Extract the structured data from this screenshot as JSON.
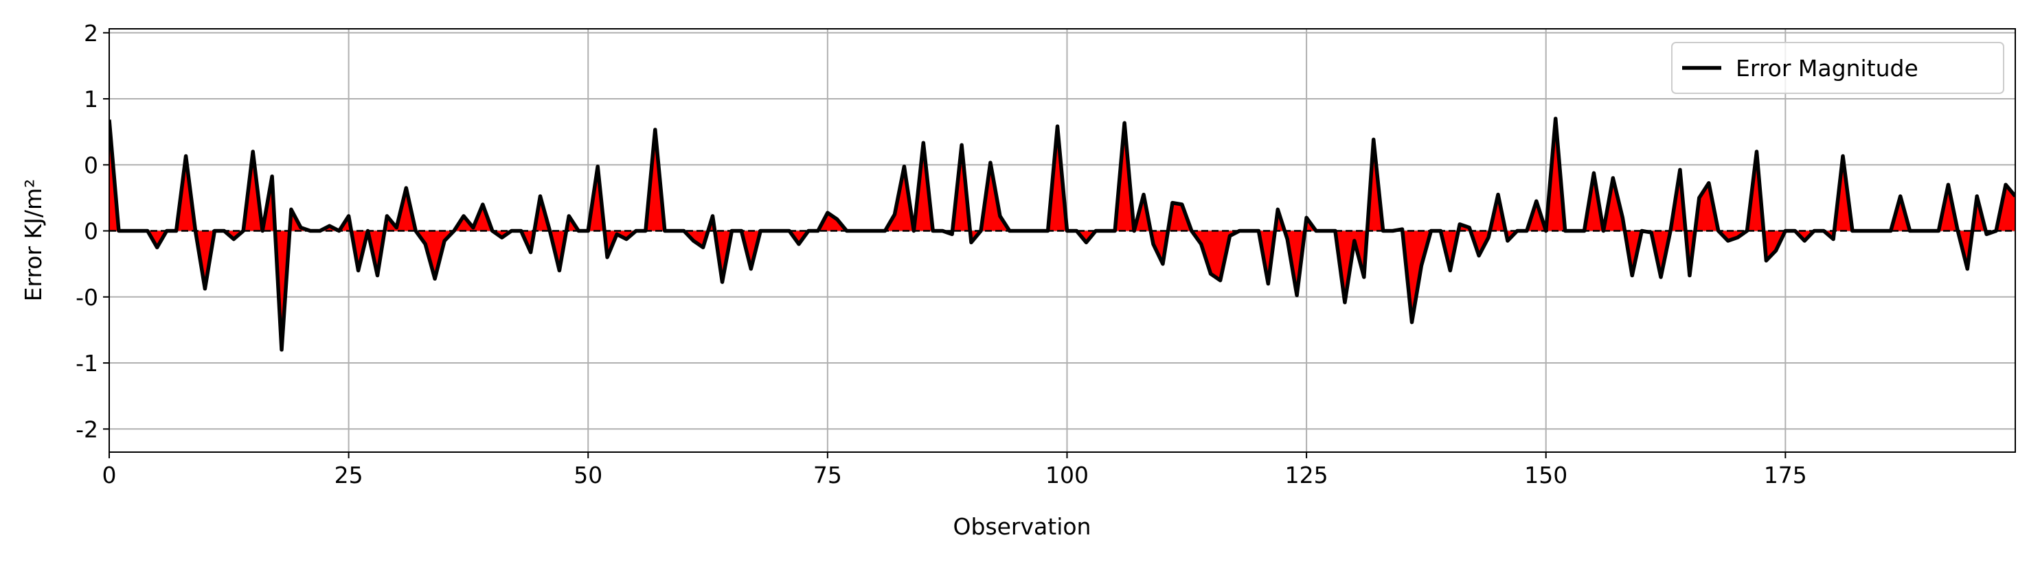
{
  "chart_data": {
    "type": "area-line",
    "xlabel": "Observation",
    "ylabel": "Error KJ/m²",
    "x": [
      0,
      1,
      2,
      3,
      4,
      5,
      6,
      7,
      8,
      9,
      10,
      11,
      12,
      13,
      14,
      15,
      16,
      17,
      18,
      19,
      20,
      21,
      22,
      23,
      24,
      25,
      26,
      27,
      28,
      29,
      30,
      31,
      32,
      33,
      34,
      35,
      36,
      37,
      38,
      39,
      40,
      41,
      42,
      43,
      44,
      45,
      46,
      47,
      48,
      49,
      50,
      51,
      52,
      53,
      54,
      55,
      56,
      57,
      58,
      59,
      60,
      61,
      62,
      63,
      64,
      65,
      66,
      67,
      68,
      69,
      70,
      71,
      72,
      73,
      74,
      75,
      76,
      77,
      78,
      79,
      80,
      81,
      82,
      83,
      84,
      85,
      86,
      87,
      88,
      89,
      90,
      91,
      92,
      93,
      94,
      95,
      96,
      97,
      98,
      99,
      100,
      101,
      102,
      103,
      104,
      105,
      106,
      107,
      108,
      109,
      110,
      111,
      112,
      113,
      114,
      115,
      116,
      117,
      118,
      119,
      120,
      121,
      122,
      123,
      124,
      125,
      126,
      127,
      128,
      129,
      130,
      131,
      132,
      133,
      134,
      135,
      136,
      137,
      138,
      139,
      140,
      141,
      142,
      143,
      144,
      145,
      146,
      147,
      148,
      149,
      150,
      151,
      152,
      153,
      154,
      155,
      156,
      157,
      158,
      159,
      160,
      161,
      162,
      163,
      164,
      165,
      166,
      167,
      168,
      169,
      170,
      171,
      172,
      173,
      174,
      175,
      176,
      177,
      178,
      179,
      180,
      181,
      182,
      183,
      184,
      185,
      186,
      187,
      188,
      189,
      190,
      191,
      192,
      193,
      194,
      195,
      196,
      197,
      198,
      199
    ],
    "series": [
      {
        "name": "Error Magnitude",
        "color": "#000000",
        "fill": "#ff0000",
        "values": [
          0.81,
          0,
          0,
          0,
          0,
          -0.1,
          0,
          0,
          0.48,
          0,
          -0.35,
          0,
          0,
          -0.05,
          0,
          0.52,
          0,
          0.33,
          -0.88,
          0.13,
          0.02,
          0,
          0,
          0.03,
          0,
          0.09,
          -0.24,
          0,
          -0.27,
          0.09,
          0.02,
          0.26,
          0,
          -0.08,
          -0.29,
          -0.06,
          0,
          0.09,
          0.02,
          0.16,
          0,
          -0.04,
          0,
          0,
          -0.13,
          0.21,
          0,
          -0.24,
          0.09,
          0,
          0,
          0.39,
          -0.16,
          -0.02,
          -0.05,
          0,
          0,
          0.72,
          0,
          0,
          0,
          -0.06,
          -0.1,
          0.09,
          -0.31,
          0,
          0,
          -0.23,
          0,
          0,
          0,
          0,
          -0.08,
          0,
          0,
          0.11,
          0.07,
          0,
          0,
          0,
          0,
          0,
          0.1,
          0.39,
          0,
          0.6,
          0,
          0,
          -0.02,
          0.58,
          -0.07,
          0,
          0.42,
          0.09,
          0,
          0,
          0,
          0,
          0,
          0.75,
          0,
          0,
          -0.07,
          0,
          0,
          0,
          0.78,
          0,
          0.22,
          -0.08,
          -0.2,
          0.17,
          0.16,
          0,
          -0.08,
          -0.26,
          -0.3,
          -0.03,
          0,
          0,
          0,
          -0.32,
          0.13,
          -0.05,
          -0.39,
          0.08,
          0,
          0,
          0,
          -0.45,
          -0.06,
          -0.28,
          0.63,
          0,
          0,
          0.01,
          -0.63,
          -0.21,
          0,
          0,
          -0.24,
          0.04,
          0.02,
          -0.15,
          -0.04,
          0.22,
          -0.06,
          0,
          0,
          0.18,
          0,
          0.82,
          0,
          0,
          0,
          0.35,
          0,
          0.32,
          0.08,
          -0.27,
          0,
          -0.01,
          -0.28,
          0,
          0.37,
          -0.27,
          0.2,
          0.29,
          0,
          -0.06,
          -0.04,
          0,
          0.52,
          -0.18,
          -0.12,
          0,
          0,
          -0.06,
          0,
          0,
          -0.05,
          0.48,
          0,
          0,
          0,
          0,
          0,
          0.21,
          0,
          0,
          0,
          0,
          0.28,
          0,
          -0.23,
          0.21,
          -0.02,
          0,
          0.28,
          0.21
        ]
      }
    ],
    "xlim": [
      0,
      199
    ],
    "xticks": [
      0,
      25,
      50,
      75,
      100,
      125,
      150,
      175
    ],
    "ylim": [
      -2.35,
      2.06
    ],
    "yscale": "piecewise",
    "yticks": [
      2,
      1,
      {
        "value": 0.4,
        "label": "0"
      },
      0,
      {
        "value": -0.4,
        "label": "-0"
      },
      -1,
      -2
    ],
    "baseline": 0,
    "grid": true,
    "legend": "upper right"
  }
}
